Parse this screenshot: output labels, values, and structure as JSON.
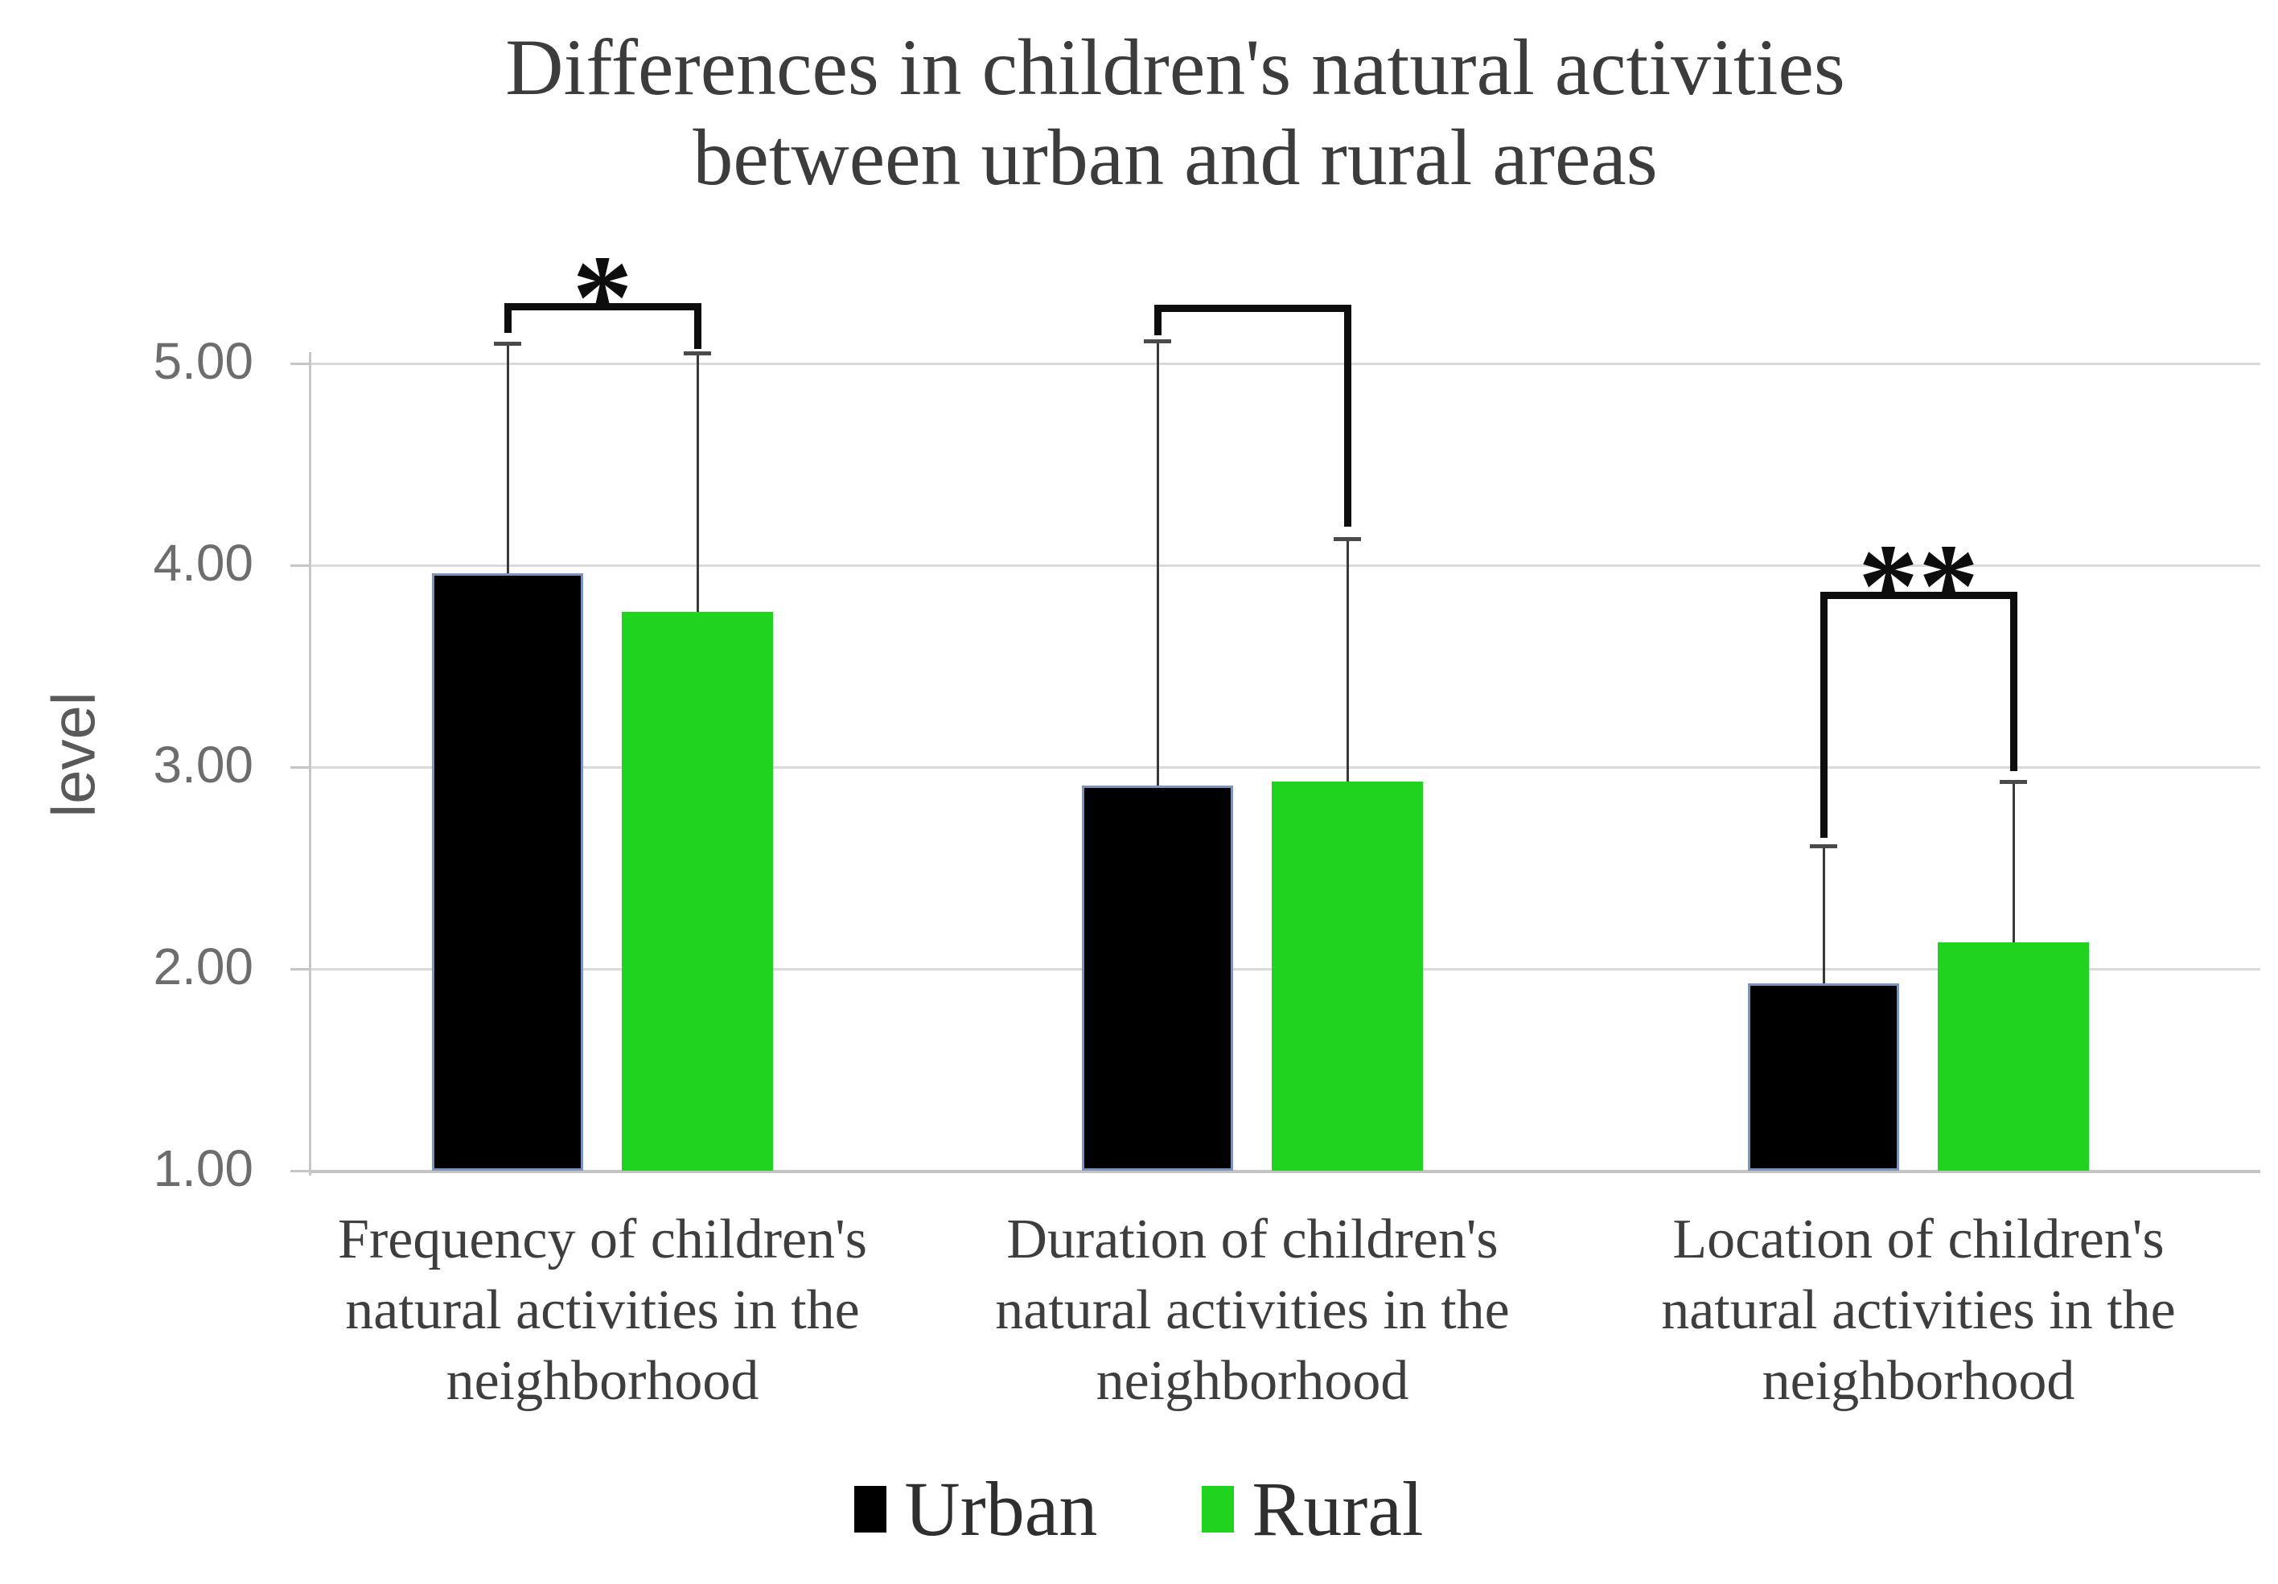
{
  "title": "Differences in children's natural activities\nbetween urban and rural areas",
  "chart_data": {
    "type": "bar",
    "title": "Differences in children's natural activities between urban and rural areas",
    "xlabel": "",
    "ylabel": "level",
    "ylim": [
      1.0,
      5.0
    ],
    "grid": true,
    "legend_position": "bottom",
    "yticks": [
      {
        "value": 5,
        "label": "5.00"
      },
      {
        "value": 4,
        "label": "4.00"
      },
      {
        "value": 3,
        "label": "3.00"
      },
      {
        "value": 2,
        "label": "2.00"
      },
      {
        "value": 1,
        "label": "1.00"
      }
    ],
    "categories": [
      "Frequency of children's natural activities in the neighborhood",
      "Duration of children's natural activities in the neighborhood",
      "Location of children's natural activities in the neighborhood"
    ],
    "series": [
      {
        "name": "Urban",
        "color": "#000000",
        "border_color": "#7e93bd",
        "values": [
          3.96,
          2.91,
          1.93
        ],
        "error_bar_top_values": [
          5.1,
          5.11,
          2.61
        ]
      },
      {
        "name": "Rural",
        "color": "#1fd31f",
        "border_color": "",
        "values": [
          3.77,
          2.93,
          2.13
        ],
        "error_bar_top_values": [
          5.05,
          4.13,
          2.93
        ]
      }
    ],
    "significance_brackets": [
      {
        "label": "*",
        "bracket_top_value": 5.3,
        "left_leg_down_to": 5.15,
        "right_leg_down_to": 5.07
      },
      {
        "label": "",
        "bracket_top_value": 5.29,
        "left_leg_down_to": 5.14,
        "right_leg_down_to": 4.19
      },
      {
        "label": "**",
        "bracket_top_value": 3.87,
        "left_leg_down_to": 2.65,
        "right_leg_down_to": 2.98
      }
    ]
  },
  "colors": {
    "urban_fill": "#000000",
    "urban_border": "#7e93bd",
    "rural_fill": "#1fd31f",
    "gridline": "#d9d9d9",
    "axis": "#c6c6c6",
    "error_bar": "#3a3a3a",
    "bracket": "#0d0d0d",
    "title_text": "#3c3c3c",
    "tick_text": "#6d6d6d",
    "category_text": "#3e3e3e"
  }
}
